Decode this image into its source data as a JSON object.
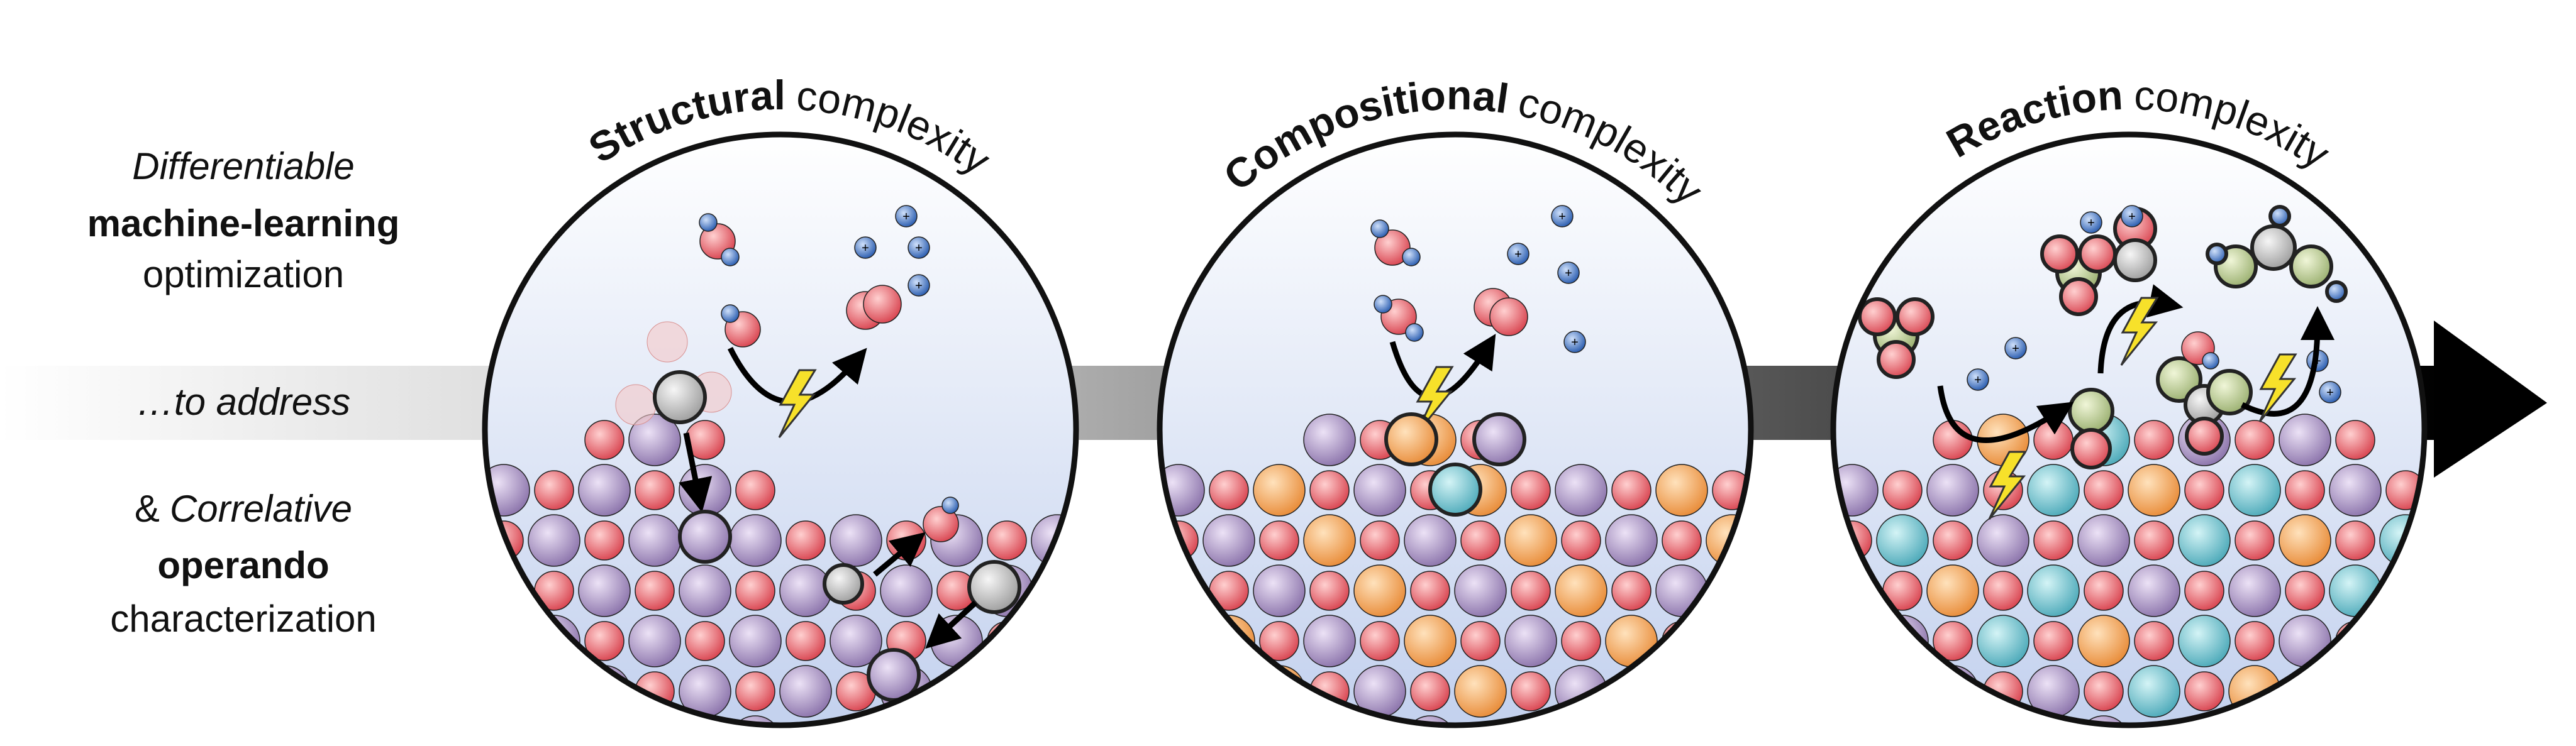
{
  "left_text": {
    "top": {
      "italic": "Differentiable",
      "bold": "machine-learning",
      "regular": "optimization"
    },
    "middle": "…to address",
    "bottom": {
      "prefix": "&",
      "italic": "Correlative",
      "bold": "operando",
      "regular": "characterization"
    }
  },
  "panels": [
    {
      "bold": "Structural",
      "regular": "complexity"
    },
    {
      "bold": "Compositional",
      "regular": "complexity"
    },
    {
      "bold": "Reaction",
      "regular": "complexity"
    }
  ]
}
